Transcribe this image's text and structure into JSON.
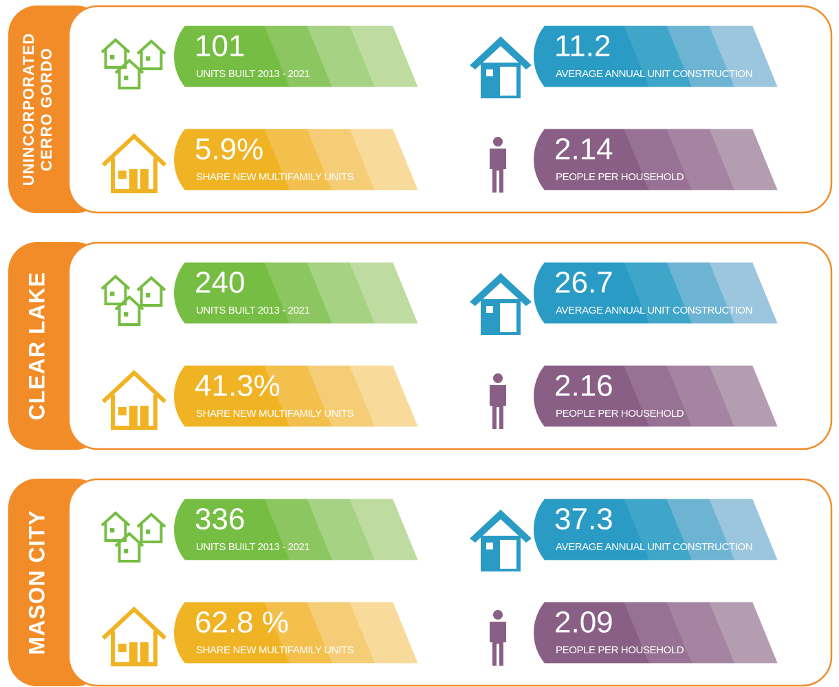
{
  "panels": [
    {
      "title": [
        "UNINCORPORATED",
        "CERRO GORDO"
      ],
      "stats": [
        {
          "value": "101",
          "label": "UNITS BUILT 2013 - 2021"
        },
        {
          "value": "11.2",
          "label": "AVERAGE ANNUAL UNIT CONSTRUCTION"
        },
        {
          "value": "5.9%",
          "label": "SHARE NEW MULTIFAMILY UNITS"
        },
        {
          "value": "2.14",
          "label": "PEOPLE PER HOUSEHOLD"
        }
      ]
    },
    {
      "title": [
        "CLEAR LAKE"
      ],
      "stats": [
        {
          "value": "240",
          "label": "UNITS BUILT 2013 - 2021"
        },
        {
          "value": "26.7",
          "label": "AVERAGE ANNUAL UNIT CONSTRUCTION"
        },
        {
          "value": "41.3%",
          "label": "SHARE NEW MULTIFAMILY UNITS"
        },
        {
          "value": "2.16",
          "label": "PEOPLE PER HOUSEHOLD"
        }
      ]
    },
    {
      "title": [
        "MASON CITY"
      ],
      "stats": [
        {
          "value": "336",
          "label": "UNITS BUILT 2013 - 2021"
        },
        {
          "value": "37.3",
          "label": "AVERAGE ANNUAL UNIT CONSTRUCTION"
        },
        {
          "value": "62.8 %",
          "label": "SHARE NEW MULTIFAMILY UNITS"
        },
        {
          "value": "2.09",
          "label": "PEOPLE PER HOUSEHOLD"
        }
      ]
    }
  ]
}
